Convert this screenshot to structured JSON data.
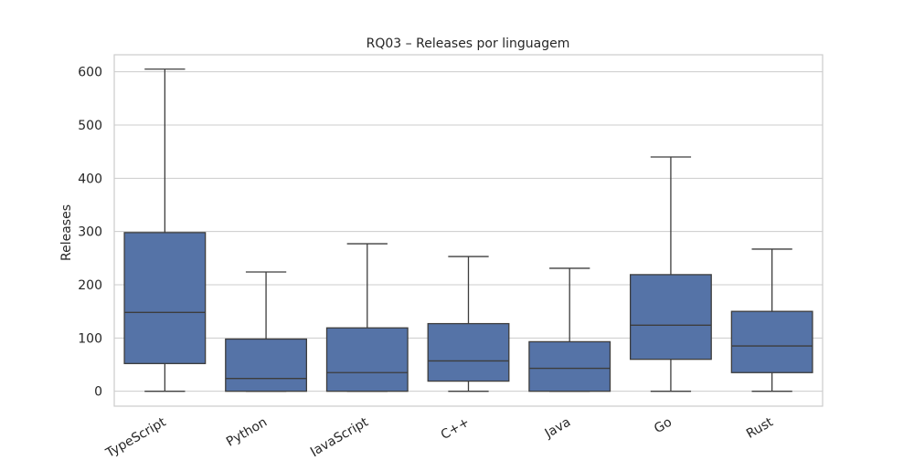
{
  "chart_data": {
    "type": "box",
    "title": "RQ03 – Releases por linguagem",
    "xlabel": "",
    "ylabel": "Releases",
    "ylim": [
      -28,
      632
    ],
    "yticks": [
      0,
      100,
      200,
      300,
      400,
      500,
      600
    ],
    "grid": true,
    "legend": "none",
    "colors": {
      "box_fill": "#5573a7",
      "line": "#3d3d3d",
      "grid": "#cccccc",
      "frame": "#cccccc"
    },
    "categories": [
      "TypeScript",
      "Python",
      "JavaScript",
      "C++",
      "Java",
      "Go",
      "Rust"
    ],
    "boxes": [
      {
        "whisker_low": 0,
        "q1": 52,
        "median": 148,
        "q3": 298,
        "whisker_high": 605
      },
      {
        "whisker_low": 0,
        "q1": 0,
        "median": 24,
        "q3": 98,
        "whisker_high": 224
      },
      {
        "whisker_low": 0,
        "q1": 0,
        "median": 35,
        "q3": 119,
        "whisker_high": 277
      },
      {
        "whisker_low": 0,
        "q1": 19,
        "median": 57,
        "q3": 127,
        "whisker_high": 253
      },
      {
        "whisker_low": 0,
        "q1": 0,
        "median": 43,
        "q3": 93,
        "whisker_high": 231
      },
      {
        "whisker_low": 0,
        "q1": 60,
        "median": 124,
        "q3": 219,
        "whisker_high": 440
      },
      {
        "whisker_low": 0,
        "q1": 35,
        "median": 85,
        "q3": 150,
        "whisker_high": 267
      }
    ]
  }
}
